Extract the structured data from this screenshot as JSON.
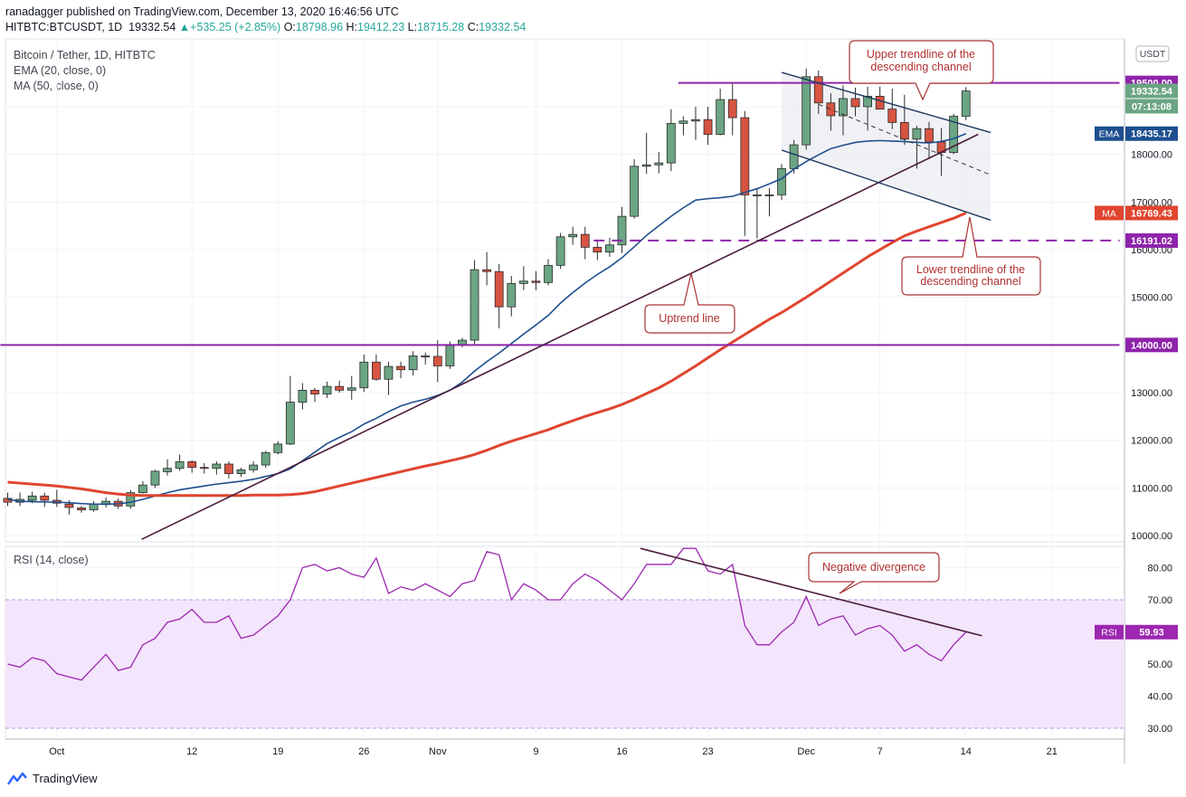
{
  "header": {
    "published": "ranadagger published on TradingView.com, December 13, 2020 16:46:56 UTC"
  },
  "symbol_bar": {
    "symbol": "HITBTC:BTCUSDT, 1D",
    "last": "19332.54",
    "change": "+535.25 (+2.85%)",
    "o_label": "O:",
    "o": "18798.96",
    "h_label": "H:",
    "h": "19412.23",
    "l_label": "L:",
    "l": "18715.28",
    "c_label": "C:",
    "c": "19332.54"
  },
  "legend": {
    "title": "Bitcoin / Tether, 1D, HITBTC",
    "ema": "EMA (20, close, 0)",
    "ma": "MA (50, close, 0)"
  },
  "rsi_title": "RSI (14, close)",
  "currency": "USDT",
  "colors": {
    "up": "#6ba583",
    "down": "#d75442",
    "ema": "#1d4e8f",
    "ma": "#e0452f",
    "purple": "#9c27b0",
    "trendline": "#4a1c3b",
    "channel": "#1e3a5f",
    "rsi_band": "#f3e5fb",
    "rsi_line": "#9c27b0"
  },
  "footer": {
    "brand": "TradingView"
  },
  "chart_data": [
    {
      "type": "candlestick",
      "title": "Bitcoin / Tether, 1D, HITBTC",
      "ylim": [
        9900,
        19800
      ],
      "y_ticks": [
        "10000.00",
        "11000.00",
        "12000.00",
        "13000.00",
        "14000.00",
        "15000.00",
        "16000.00",
        "17000.00",
        "18000.00",
        "19000.00"
      ],
      "x_ticks": [
        {
          "i": 4,
          "label": "Oct"
        },
        {
          "i": 15,
          "label": "12"
        },
        {
          "i": 22,
          "label": "19"
        },
        {
          "i": 29,
          "label": "26"
        },
        {
          "i": 35,
          "label": "Nov"
        },
        {
          "i": 43,
          "label": "9"
        },
        {
          "i": 50,
          "label": "16"
        },
        {
          "i": 57,
          "label": "23"
        },
        {
          "i": 65,
          "label": "Dec"
        },
        {
          "i": 71,
          "label": "7"
        },
        {
          "i": 78,
          "label": "14"
        },
        {
          "i": 85,
          "label": "21"
        }
      ],
      "ohlc": [
        [
          10780,
          10900,
          10620,
          10700
        ],
        [
          10700,
          10900,
          10620,
          10760
        ],
        [
          10740,
          10920,
          10680,
          10830
        ],
        [
          10830,
          10900,
          10600,
          10740
        ],
        [
          10740,
          10960,
          10600,
          10680
        ],
        [
          10660,
          10740,
          10440,
          10590
        ],
        [
          10580,
          10620,
          10480,
          10540
        ],
        [
          10540,
          10720,
          10500,
          10660
        ],
        [
          10650,
          10800,
          10590,
          10720
        ],
        [
          10720,
          10780,
          10560,
          10620
        ],
        [
          10620,
          10960,
          10560,
          10900
        ],
        [
          10900,
          11140,
          10880,
          11060
        ],
        [
          11060,
          11380,
          11000,
          11350
        ],
        [
          11340,
          11600,
          11260,
          11410
        ],
        [
          11410,
          11700,
          11360,
          11550
        ],
        [
          11550,
          11580,
          11320,
          11430
        ],
        [
          11430,
          11520,
          11300,
          11410
        ],
        [
          11410,
          11560,
          11280,
          11500
        ],
        [
          11500,
          11560,
          11200,
          11300
        ],
        [
          11300,
          11420,
          11230,
          11380
        ],
        [
          11380,
          11560,
          11320,
          11480
        ],
        [
          11480,
          11780,
          11420,
          11740
        ],
        [
          11740,
          11980,
          11700,
          11920
        ],
        [
          11920,
          13350,
          11900,
          12800
        ],
        [
          12800,
          13200,
          12650,
          13050
        ],
        [
          13050,
          13100,
          12800,
          12970
        ],
        [
          12970,
          13230,
          12890,
          13130
        ],
        [
          13130,
          13250,
          13000,
          13050
        ],
        [
          13050,
          13350,
          12850,
          13100
        ],
        [
          13100,
          13800,
          13020,
          13640
        ],
        [
          13640,
          13800,
          13250,
          13280
        ],
        [
          13280,
          13650,
          12950,
          13550
        ],
        [
          13550,
          13650,
          13300,
          13480
        ],
        [
          13480,
          13870,
          13360,
          13770
        ],
        [
          13770,
          13840,
          13590,
          13760
        ],
        [
          13760,
          14100,
          13220,
          13560
        ],
        [
          13560,
          14070,
          13500,
          14010
        ],
        [
          14010,
          14150,
          13950,
          14100
        ],
        [
          14100,
          15780,
          14000,
          15580
        ],
        [
          15580,
          15950,
          15250,
          15540
        ],
        [
          15540,
          15700,
          14350,
          14800
        ],
        [
          14800,
          15450,
          14600,
          15290
        ],
        [
          15290,
          15650,
          15150,
          15340
        ],
        [
          15340,
          15550,
          15150,
          15310
        ],
        [
          15310,
          15800,
          15250,
          15670
        ],
        [
          15670,
          16350,
          15600,
          16270
        ],
        [
          16270,
          16480,
          16100,
          16320
        ],
        [
          16320,
          16480,
          15800,
          16050
        ],
        [
          16050,
          16180,
          15780,
          15950
        ],
        [
          15950,
          16250,
          15850,
          16100
        ],
        [
          16100,
          16900,
          15930,
          16700
        ],
        [
          16700,
          17900,
          16650,
          17750
        ],
        [
          17750,
          18450,
          17590,
          17780
        ],
        [
          17780,
          18050,
          17600,
          17820
        ],
        [
          17820,
          18950,
          17650,
          18650
        ],
        [
          18650,
          18800,
          18400,
          18700
        ],
        [
          18700,
          19000,
          18300,
          18730
        ],
        [
          18730,
          19000,
          18200,
          18420
        ],
        [
          18420,
          19380,
          18400,
          19150
        ],
        [
          19150,
          19480,
          18400,
          18770
        ],
        [
          18770,
          18910,
          16290,
          17150
        ],
        [
          17150,
          17290,
          16240,
          17150
        ],
        [
          17150,
          17290,
          16700,
          17150
        ],
        [
          17150,
          17800,
          17040,
          17700
        ],
        [
          17700,
          18300,
          17600,
          18200
        ],
        [
          18200,
          19800,
          18100,
          19630
        ],
        [
          19630,
          19760,
          18850,
          19080
        ],
        [
          19080,
          19280,
          18500,
          18810
        ],
        [
          18810,
          19450,
          18400,
          19170
        ],
        [
          19170,
          19400,
          18800,
          19000
        ],
        [
          19000,
          19420,
          18500,
          19220
        ],
        [
          19220,
          19420,
          18950,
          18950
        ],
        [
          18950,
          19380,
          18530,
          18670
        ],
        [
          18670,
          19250,
          18200,
          18320
        ],
        [
          18320,
          18600,
          17700,
          18540
        ],
        [
          18540,
          18680,
          17900,
          18260
        ],
        [
          18260,
          18550,
          17550,
          18040
        ],
        [
          18040,
          18850,
          18000,
          18800
        ],
        [
          18800,
          19410,
          18720,
          19330
        ]
      ],
      "ema20": [
        10760,
        10720,
        10710,
        10705,
        10700,
        10690,
        10670,
        10660,
        10660,
        10665,
        10700,
        10760,
        10830,
        10900,
        10960,
        11000,
        11040,
        11080,
        11110,
        11140,
        11180,
        11240,
        11300,
        11400,
        11570,
        11750,
        11930,
        12060,
        12180,
        12340,
        12460,
        12600,
        12720,
        12800,
        12860,
        12940,
        13050,
        13220,
        13450,
        13650,
        13830,
        14030,
        14230,
        14420,
        14620,
        14880,
        15100,
        15300,
        15480,
        15640,
        15830,
        16060,
        16300,
        16500,
        16700,
        16880,
        17040,
        17070,
        17090,
        17120,
        17200,
        17280,
        17380,
        17490,
        17690,
        17850,
        17990,
        18120,
        18190,
        18250,
        18280,
        18290,
        18280,
        18270,
        18250,
        18240,
        18270,
        18330,
        18435
      ],
      "ma50": [
        11120,
        11100,
        11080,
        11060,
        11040,
        11010,
        10980,
        10940,
        10900,
        10870,
        10850,
        10840,
        10840,
        10840,
        10840,
        10840,
        10840,
        10840,
        10840,
        10840,
        10850,
        10850,
        10850,
        10860,
        10880,
        10920,
        10980,
        11040,
        11100,
        11160,
        11220,
        11280,
        11340,
        11400,
        11460,
        11510,
        11570,
        11630,
        11700,
        11790,
        11890,
        11980,
        12060,
        12140,
        12220,
        12320,
        12410,
        12500,
        12580,
        12660,
        12750,
        12860,
        12980,
        13100,
        13240,
        13400,
        13560,
        13730,
        13900,
        14060,
        14220,
        14380,
        14540,
        14680,
        14840,
        15000,
        15170,
        15340,
        15510,
        15680,
        15850,
        16000,
        16150,
        16290,
        16390,
        16480,
        16570,
        16660,
        16769
      ]
    },
    {
      "type": "line",
      "title": "RSI (14, close)",
      "ylim": [
        26,
        88
      ],
      "y_ticks": [
        "30.00",
        "40.00",
        "50.00",
        "60.00",
        "70.00",
        "80.00"
      ],
      "band": [
        30,
        70
      ],
      "values": [
        50,
        49,
        52,
        51,
        47,
        46,
        45,
        49,
        53,
        48,
        49,
        56,
        58,
        63,
        64,
        67,
        63,
        63,
        65,
        58,
        59,
        62,
        65,
        70,
        80,
        81,
        79,
        80,
        78,
        77,
        83,
        72,
        74,
        73,
        75,
        73,
        71,
        75,
        76,
        85,
        84,
        70,
        75,
        73,
        70,
        70,
        75,
        78,
        76,
        73,
        70,
        75,
        81,
        81,
        81,
        86,
        86,
        79,
        78,
        81,
        62,
        56,
        56,
        60,
        63,
        71,
        62,
        64,
        65,
        59,
        61,
        62,
        59,
        54,
        56,
        53,
        51,
        56,
        59.93
      ]
    }
  ],
  "price_labels": {
    "resistance": "19500.00",
    "last": "19332.54",
    "countdown": "07:13:08",
    "ema_tag": "EMA",
    "ema_value": "18435.17",
    "ma_tag": "MA",
    "ma_value": "16769.43",
    "dashed_level": "16191.02",
    "support": "14000.00",
    "rsi_tag": "RSI",
    "rsi_value": "59.93"
  },
  "annotations": {
    "upper": [
      "Upper trendline of the",
      "descending channel"
    ],
    "lower": [
      "Lower trendline of the",
      "descending channel"
    ],
    "uptrend": "Uptrend line",
    "divergence": "Negative divergence"
  }
}
